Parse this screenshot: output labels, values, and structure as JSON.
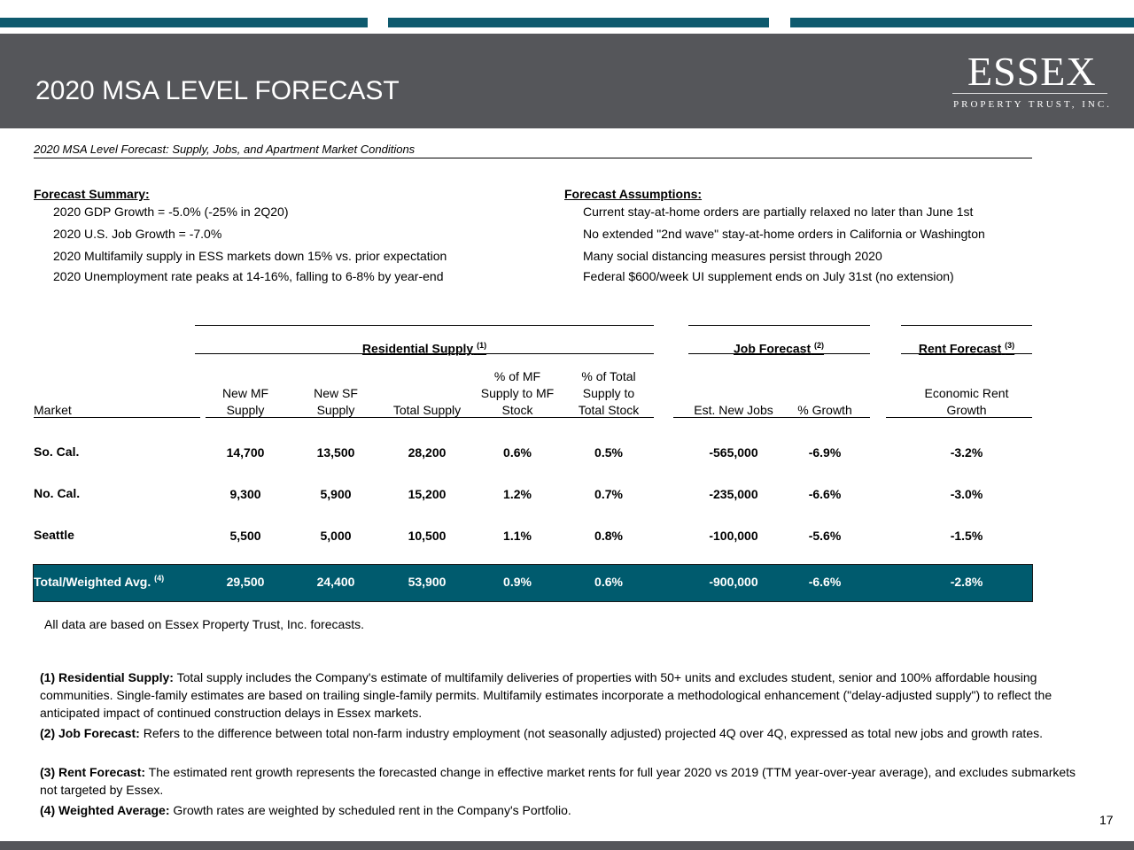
{
  "header": {
    "title": "2020 MSA LEVEL FORECAST",
    "logo": "ESSEX",
    "logo_sub": "PROPERTY TRUST, INC."
  },
  "subtitle": "2020 MSA Level Forecast: Supply, Jobs, and Apartment Market Conditions",
  "summary": {
    "heading": "Forecast Summary:",
    "items": [
      "2020 GDP Growth = -5.0% (-25% in 2Q20)",
      "2020 U.S. Job Growth = -7.0%",
      "2020 Multifamily supply in ESS markets down 15% vs. prior expectation",
      "2020 Unemployment rate peaks at 14-16%, falling to 6-8% by year-end"
    ]
  },
  "assumptions": {
    "heading": "Forecast Assumptions:",
    "items": [
      "Current stay-at-home orders are partially relaxed no later than June 1st",
      "No extended \"2nd wave\" stay-at-home orders in California or Washington",
      "Many social distancing measures persist through 2020",
      "Federal $600/week UI supplement ends on July 31st (no extension)"
    ]
  },
  "table": {
    "groups": [
      {
        "label": "Residential Supply",
        "note": "(1)"
      },
      {
        "label": "Job Forecast",
        "note": "(2)"
      },
      {
        "label": "Rent Forecast",
        "note": "(3)"
      }
    ],
    "columns": [
      "Market",
      "New MF\nSupply",
      "New SF\nSupply",
      "Total Supply",
      "% of MF\nSupply to MF\nStock",
      "% of Total\nSupply to\nTotal Stock",
      "Est. New Jobs",
      "% Growth",
      "Economic Rent\nGrowth"
    ],
    "rows": [
      [
        "So. Cal.",
        "14,700",
        "13,500",
        "28,200",
        "0.6%",
        "0.5%",
        "-565,000",
        "-6.9%",
        "-3.2%"
      ],
      [
        "No. Cal.",
        "9,300",
        "5,900",
        "15,200",
        "1.2%",
        "0.7%",
        "-235,000",
        "-6.6%",
        "-3.0%"
      ],
      [
        "Seattle",
        "5,500",
        "5,000",
        "10,500",
        "1.1%",
        "0.8%",
        "-100,000",
        "-5.6%",
        "-1.5%"
      ]
    ],
    "total": {
      "label": "Total/Weighted Avg.",
      "note": "(4)",
      "cells": [
        "29,500",
        "24,400",
        "53,900",
        "0.9%",
        "0.6%",
        "-900,000",
        "-6.6%",
        "-2.8%"
      ]
    }
  },
  "note": "All data are based on Essex Property Trust, Inc. forecasts.",
  "footnotes": [
    {
      "label": "(1) Residential Supply:",
      "text": "Total supply includes the Company's estimate of multifamily deliveries of properties with 50+ units and excludes student, senior and 100% affordable housing communities.  Single-family estimates are based on trailing single-family permits.  Multifamily estimates incorporate a methodological enhancement (\"delay-adjusted supply\") to reflect the anticipated impact of continued construction delays in Essex markets."
    },
    {
      "label": "(2) Job Forecast:",
      "text": "Refers to the difference between total non-farm industry employment (not seasonally adjusted) projected 4Q over 4Q, expressed as total new jobs and growth rates."
    },
    {
      "label": "(3) Rent Forecast:",
      "text": "The estimated rent growth represents the forecasted change in effective market rents for full year 2020 vs 2019 (TTM year-over-year average), and excludes submarkets not targeted by Essex."
    },
    {
      "label": "(4) Weighted Average:",
      "text": "Growth rates are weighted by scheduled rent in the Company's Portfolio."
    }
  ],
  "page_number": "17"
}
